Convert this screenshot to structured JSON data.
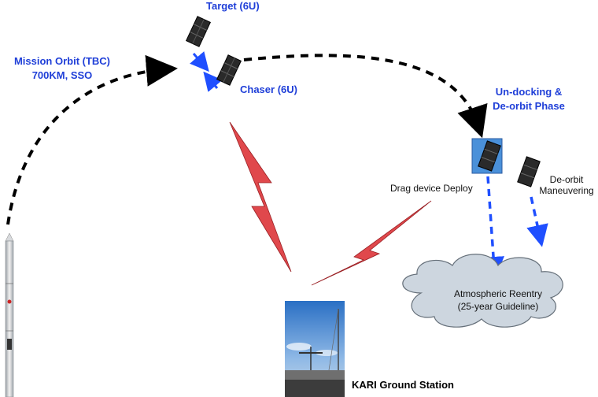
{
  "labels": {
    "target": "Target (6U)",
    "mission_orbit_line1": "Mission Orbit (TBC)",
    "mission_orbit_line2": "700KM, SSO",
    "chaser": "Chaser (6U)",
    "undocking_line1": "Un-docking &",
    "undocking_line2": "De-orbit Phase",
    "drag_device": "Drag device Deploy",
    "deorbit_line1": "De-orbit",
    "deorbit_line2": "Maneuvering",
    "reentry_line1": "Atmospheric Reentry",
    "reentry_line2": "(25-year Guideline)",
    "ground_station": "KARI Ground Station"
  },
  "colors": {
    "label_blue": "#1f3fd8",
    "arrow_blue": "#1f4fff",
    "signal_red": "#e0484c",
    "cloud_fill": "#cdd6df",
    "highlight_box": "#4a90d9"
  },
  "icons": [
    "rocket-icon",
    "satellite-icon",
    "cloud-icon",
    "lightning-signal-icon",
    "ground-station-photo"
  ]
}
